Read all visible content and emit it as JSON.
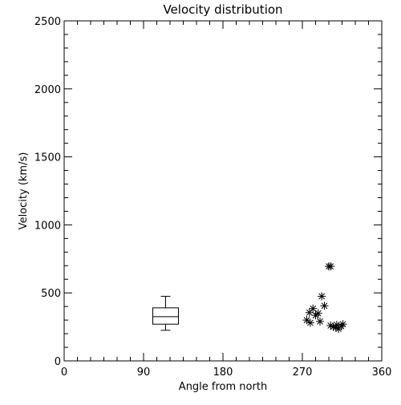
{
  "chart_data": {
    "type": "scatter",
    "title": "Velocity distribution",
    "xlabel": "Angle from north",
    "ylabel": "Velocity (km/s)",
    "xlim": [
      0,
      360
    ],
    "ylim": [
      0,
      2500
    ],
    "xticks": [
      0,
      90,
      180,
      270,
      360
    ],
    "yticks": [
      0,
      500,
      1000,
      1500,
      2000,
      2500
    ],
    "grid": false,
    "marker": "asterisk",
    "points": [
      {
        "x": 300,
        "y": 695
      },
      {
        "x": 302,
        "y": 695
      },
      {
        "x": 292,
        "y": 475
      },
      {
        "x": 295,
        "y": 405
      },
      {
        "x": 282,
        "y": 385
      },
      {
        "x": 288,
        "y": 350
      },
      {
        "x": 278,
        "y": 355
      },
      {
        "x": 285,
        "y": 335
      },
      {
        "x": 290,
        "y": 290
      },
      {
        "x": 275,
        "y": 300
      },
      {
        "x": 279,
        "y": 280
      },
      {
        "x": 302,
        "y": 260
      },
      {
        "x": 305,
        "y": 250
      },
      {
        "x": 308,
        "y": 245
      },
      {
        "x": 311,
        "y": 235
      },
      {
        "x": 314,
        "y": 255
      },
      {
        "x": 316,
        "y": 270
      },
      {
        "x": 309,
        "y": 265
      }
    ],
    "boxplot": {
      "x": 115,
      "whisker_low": 225,
      "q1": 270,
      "median": 325,
      "q3": 390,
      "whisker_high": 475
    }
  }
}
